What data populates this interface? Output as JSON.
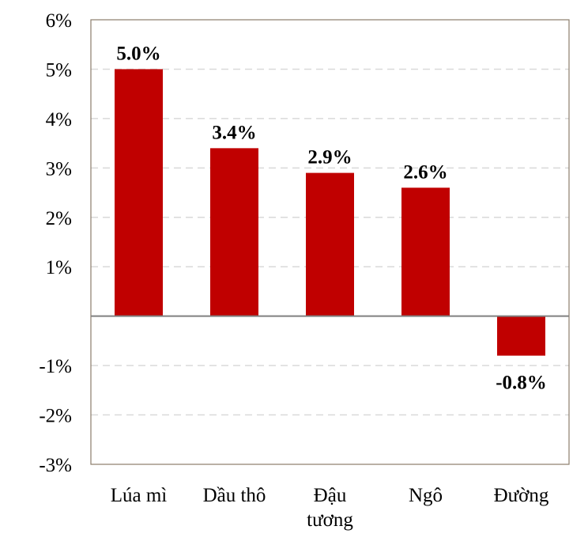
{
  "chart_data": {
    "type": "bar",
    "categories": [
      [
        "Lúa mì"
      ],
      [
        "Dầu thô"
      ],
      [
        "Đậu",
        "tương"
      ],
      [
        "Ngô"
      ],
      [
        "Đường"
      ]
    ],
    "values": [
      5.0,
      3.4,
      2.9,
      2.6,
      -0.8
    ],
    "data_labels": [
      "5.0%",
      "3.4%",
      "2.9%",
      "2.6%",
      "-0.8%"
    ],
    "yticks": [
      {
        "value": 6,
        "label": "6%"
      },
      {
        "value": 5,
        "label": "5%"
      },
      {
        "value": 4,
        "label": "4%"
      },
      {
        "value": 3,
        "label": "3%"
      },
      {
        "value": 2,
        "label": "2%"
      },
      {
        "value": 1,
        "label": "1%"
      },
      {
        "value": -1,
        "label": "-1%"
      },
      {
        "value": -2,
        "label": "-2%"
      },
      {
        "value": -3,
        "label": "-3%"
      }
    ],
    "ylim": [
      -3,
      6
    ],
    "title": "",
    "xlabel": "",
    "ylabel": "",
    "grid": true,
    "legend": "none",
    "colors": {
      "bar": "#C00000",
      "frame": "#8B7D6B",
      "grid": "#D9D9D9",
      "baseline": "#808080"
    }
  }
}
